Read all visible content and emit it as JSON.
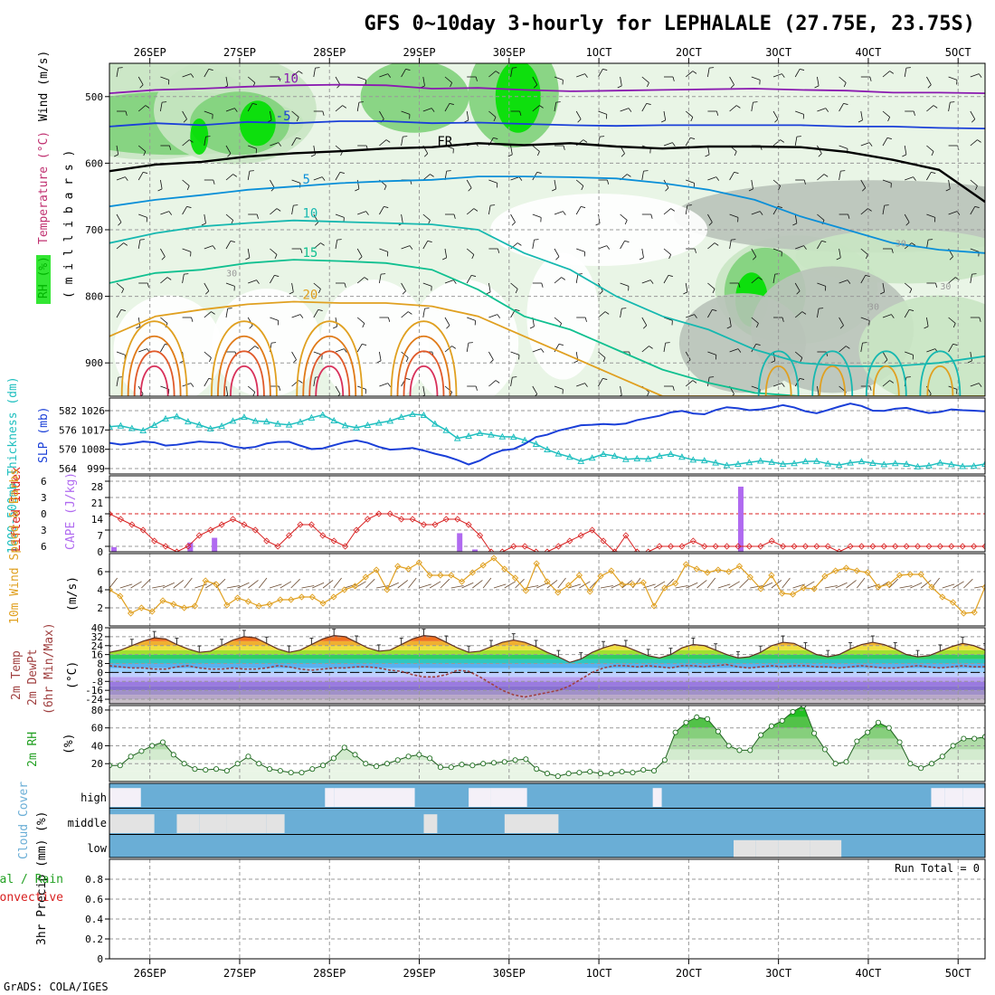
{
  "title": "GFS 0~10day 3-hourly for LEPHALALE (27.75E, 23.75S)",
  "credit": "GrADS: COLA/IGES",
  "colors": {
    "rh_green_1": "#e9f5e6",
    "rh_green_2": "#c9e6c3",
    "rh_green_3": "#7fd17a",
    "rh_green_4": "#00e000",
    "rh_grey": "#b9c3b9",
    "cloud_blue": "#6aaed6",
    "cloud_grey": "#e3e3e3",
    "thickness": "#1fbfbf",
    "slp": "#1a3fd8",
    "lifted": "#d82020",
    "cape": "#b06af0",
    "wind_speed": "#e0a020",
    "dewpoint": "#a04040",
    "rh2m": "#22a022"
  },
  "chart_data": {
    "type": "meteogram",
    "x": {
      "tick_labels": [
        "26SEP",
        "27SEP",
        "28SEP",
        "29SEP",
        "30SEP",
        "1OCT",
        "2OCT",
        "3OCT",
        "4OCT",
        "5OCT"
      ],
      "start_day": -0.45,
      "end_day": 9.3
    },
    "panels": [
      {
        "id": "upper_air",
        "ylabel_parts": [
          "RH (%)",
          "Temperature (°C)",
          "Wind (m/s)"
        ],
        "ylabel_mb": "( m i l l i b a r s )",
        "ylim": [
          950,
          450
        ],
        "yticks": [
          500,
          600,
          700,
          800,
          900
        ],
        "contours": [
          {
            "label": "-10",
            "level": -10,
            "color": "#8a1ab0",
            "values_mb": [
              495,
              490,
              488,
              485,
              483,
              482,
              483,
              488,
              487,
              490,
              492,
              491,
              490,
              489,
              488,
              490,
              491,
              494,
              494,
              495
            ]
          },
          {
            "label": "-5",
            "level": -5,
            "color": "#1a3fd8",
            "values_mb": [
              545,
              540,
              543,
              538,
              540,
              537,
              537,
              540,
              539,
              541,
              543,
              544,
              543,
              543,
              543,
              543,
              545,
              545,
              547,
              548
            ]
          },
          {
            "label": "FR",
            "level": 0,
            "color": "#000000",
            "values_mb": [
              612,
              602,
              598,
              590,
              585,
              582,
              578,
              576,
              570,
              573,
              570,
              575,
              578,
              575,
              575,
              576,
              583,
              595,
              610,
              658
            ]
          },
          {
            "label": "5",
            "level": 5,
            "color": "#0a8fd8",
            "values_mb": [
              665,
              655,
              648,
              640,
              635,
              630,
              627,
              625,
              620,
              620,
              621,
              623,
              630,
              640,
              655,
              680,
              700,
              720,
              730,
              735
            ]
          },
          {
            "label": "10",
            "level": 10,
            "color": "#16b8b0",
            "values_mb": [
              720,
              705,
              695,
              690,
              686,
              688,
              690,
              692,
              700,
              735,
              760,
              800,
              830,
              850,
              880,
              900,
              905,
              905,
              900,
              890
            ]
          },
          {
            "label": "15",
            "level": 15,
            "color": "#10c090",
            "values_mb": [
              780,
              765,
              760,
              750,
              745,
              747,
              750,
              760,
              790,
              830,
              850,
              880,
              910,
              930,
              945,
              950,
              950,
              950,
              950,
              950
            ]
          },
          {
            "label": "20",
            "level": 20,
            "color": "#e0a020",
            "values_mb": [
              860,
              830,
              820,
              812,
              808,
              810,
              810,
              815,
              830,
              860,
              890,
              920,
              950,
              950,
              950,
              950,
              950,
              950,
              950,
              950
            ]
          }
        ],
        "rh_labels": [
          "30",
          "30",
          "30",
          "30"
        ]
      },
      {
        "id": "thickness_slp",
        "ylabel": "1000-500mb Thickness (dm)",
        "ylabel2": "SLP (mb)",
        "left_ticks": [
          564,
          570,
          576,
          582
        ],
        "right_ticks": [
          999,
          1008,
          1017,
          1026
        ],
        "series": [
          {
            "name": "Thickness (dm)",
            "axis": "left",
            "values": [
              577.0,
              577.3,
              576.5,
              575.8,
              577.5,
              579.5,
              580.2,
              578.6,
              577.6,
              576.4,
              577.2,
              578.8,
              580.0,
              578.8,
              578.6,
              577.9,
              577.6,
              578.5,
              579.8,
              580.7,
              578.9,
              577.4,
              576.7,
              577.5,
              578.2,
              578.8,
              580.0,
              580.9,
              580.6,
              577.9,
              575.9,
              573.4,
              574.1,
              575.0,
              574.5,
              573.9,
              573.8,
              572.8,
              571.6,
              569.9,
              568.6,
              567.6,
              566.3,
              567.3,
              568.5,
              567.9,
              566.9,
              567.1,
              567.0,
              567.9,
              568.5,
              567.6,
              566.7,
              566.5,
              565.8,
              565.0,
              565.4,
              565.9,
              566.4,
              566.0,
              565.4,
              565.6,
              566.2,
              566.3,
              565.5,
              565.1,
              565.8,
              566.2,
              565.7,
              565.3,
              565.6,
              565.4,
              564.6,
              564.9,
              565.8,
              565.3,
              564.7,
              564.8,
              565.4
            ]
          },
          {
            "name": "SLP (mb)",
            "axis": "right",
            "values": [
              1011.0,
              1010.2,
              1010.8,
              1011.6,
              1011.2,
              1009.7,
              1010.1,
              1010.9,
              1011.6,
              1011.3,
              1011.0,
              1009.3,
              1008.5,
              1009.1,
              1010.7,
              1011.4,
              1011.5,
              1009.7,
              1008.1,
              1008.4,
              1009.9,
              1011.3,
              1012.1,
              1011.0,
              1009.1,
              1007.8,
              1008.1,
              1008.6,
              1007.4,
              1005.9,
              1004.7,
              1003.0,
              1000.9,
              1002.7,
              1005.6,
              1007.5,
              1008.1,
              1010.5,
              1013.7,
              1014.8,
              1016.7,
              1017.9,
              1019.2,
              1019.4,
              1019.8,
              1019.5,
              1020.0,
              1021.6,
              1022.6,
              1023.6,
              1025.2,
              1025.9,
              1024.7,
              1024.3,
              1026.3,
              1027.6,
              1027.1,
              1026.2,
              1026.6,
              1027.4,
              1028.6,
              1027.5,
              1025.7,
              1024.8,
              1026.3,
              1027.9,
              1029.3,
              1028.2,
              1026.0,
              1025.9,
              1026.9,
              1027.3,
              1026.0,
              1024.9,
              1025.4,
              1026.6,
              1026.2,
              1026.0,
              1025.7
            ]
          }
        ]
      },
      {
        "id": "lifted_cape",
        "ylabel": "Lifted Index",
        "ylabel2": "CAPE (J/kg)",
        "li_ticks": [
          -6,
          -3,
          0,
          3,
          6
        ],
        "cape_ticks": [
          0,
          7,
          14,
          21,
          28
        ],
        "reference_line_li": 0,
        "lifted_index": [
          0,
          1,
          2,
          3,
          5,
          6,
          7,
          6,
          4,
          3,
          2,
          1,
          2,
          3,
          5,
          6,
          4,
          2,
          2,
          4,
          5,
          6,
          3,
          1,
          0,
          0,
          1,
          1,
          2,
          2,
          1,
          1,
          2,
          4,
          7,
          7,
          6,
          6,
          7,
          7,
          6,
          5,
          4,
          3,
          5,
          7,
          4,
          7,
          7,
          6,
          6,
          6,
          5,
          6,
          6,
          6,
          6,
          6,
          6,
          5,
          6,
          6,
          6,
          6,
          6,
          7,
          6,
          6,
          6,
          6,
          6,
          6,
          6,
          6,
          6,
          6,
          6,
          6,
          6
        ],
        "cape_bars": [
          {
            "day": -0.4,
            "value": 2
          },
          {
            "day": 0.45,
            "value": 4
          },
          {
            "day": 0.72,
            "value": 6
          },
          {
            "day": 3.45,
            "value": 8
          },
          {
            "day": 3.62,
            "value": 1
          },
          {
            "day": 6.58,
            "value": 28
          }
        ]
      },
      {
        "id": "wind10m",
        "ylabel": "10m Wind Speed & Barbs",
        "ylabel_unit": "(m/s)",
        "ylim": [
          0,
          8
        ],
        "yticks": [
          2,
          4,
          6
        ],
        "values": [
          4.0,
          3.3,
          1.4,
          2.0,
          1.6,
          2.8,
          2.4,
          2.0,
          2.2,
          5.0,
          4.6,
          2.3,
          3.1,
          2.7,
          2.2,
          2.4,
          2.9,
          2.9,
          3.2,
          3.2,
          2.5,
          3.2,
          4.0,
          4.4,
          5.4,
          6.2,
          4.0,
          6.6,
          6.3,
          7.0,
          5.6,
          5.6,
          5.6,
          4.9,
          5.9,
          6.7,
          7.5,
          6.3,
          5.3,
          3.9,
          6.9,
          4.9,
          3.7,
          4.5,
          5.6,
          3.8,
          5.5,
          6.1,
          4.6,
          4.6,
          4.8,
          2.2,
          4.2,
          4.7,
          6.8,
          6.3,
          5.9,
          6.2,
          6.0,
          6.6,
          5.4,
          4.1,
          5.6,
          3.6,
          3.5,
          4.2,
          4.1,
          5.5,
          6.1,
          6.4,
          6.1,
          5.9,
          4.3,
          4.6,
          5.6,
          5.7,
          5.7,
          4.3,
          3.2,
          2.6,
          1.4,
          1.5,
          4.3
        ]
      },
      {
        "id": "temp2m",
        "ylabel": "2m Temp",
        "ylabel_b": "2m DewPt",
        "ylabel_c": "(6hr Min/Max)",
        "ylabel_unit": "(°C)",
        "yticks": [
          -24,
          -16,
          -8,
          0,
          8,
          16,
          24,
          32,
          40
        ],
        "ylim": [
          -28,
          40
        ],
        "temperature": [
          18,
          20,
          24,
          28,
          31,
          30,
          25,
          21,
          18,
          19,
          24,
          29,
          32,
          31,
          26,
          21,
          18,
          20,
          25,
          30,
          33,
          32,
          27,
          22,
          19,
          20,
          25,
          30,
          33,
          32,
          27,
          22,
          18,
          19,
          23,
          27,
          29,
          27,
          23,
          18,
          14,
          9,
          12,
          18,
          22,
          25,
          23,
          19,
          15,
          13,
          16,
          22,
          25,
          24,
          20,
          16,
          13,
          14,
          18,
          24,
          27,
          26,
          21,
          16,
          14,
          16,
          21,
          25,
          27,
          25,
          21,
          16,
          14,
          15,
          19,
          23,
          26,
          24,
          20
        ],
        "dewpoint": [
          6,
          5,
          4,
          4,
          3,
          3,
          5,
          6,
          4,
          3,
          3,
          4,
          3,
          3,
          4,
          6,
          5,
          3,
          2,
          3,
          4,
          4,
          5,
          5,
          4,
          2,
          1,
          -2,
          -4,
          -4,
          -2,
          2,
          1,
          -4,
          -10,
          -16,
          -20,
          -22,
          -20,
          -18,
          -16,
          -12,
          -6,
          0,
          4,
          6,
          6,
          5,
          6,
          5,
          4,
          6,
          6,
          5,
          6,
          7,
          5,
          4,
          5,
          6,
          5,
          6,
          6,
          5,
          5,
          4,
          5,
          6,
          5,
          4,
          4,
          5,
          6,
          5,
          4,
          5,
          6,
          5,
          5
        ]
      },
      {
        "id": "rh2m",
        "ylabel": "2m RH",
        "ylabel_unit": "(%)",
        "yticks": [
          20,
          40,
          60,
          80
        ],
        "ylim": [
          0,
          85
        ],
        "values": [
          18,
          18,
          28,
          34,
          40,
          44,
          30,
          20,
          14,
          13,
          14,
          12,
          20,
          28,
          20,
          14,
          12,
          10,
          10,
          14,
          18,
          26,
          38,
          30,
          20,
          17,
          20,
          24,
          28,
          30,
          26,
          16,
          16,
          19,
          18,
          20,
          21,
          22,
          24,
          25,
          14,
          9,
          6,
          9,
          10,
          11,
          9,
          9,
          11,
          10,
          13,
          12,
          24,
          55,
          66,
          72,
          70,
          56,
          40,
          35,
          35,
          52,
          62,
          68,
          78,
          85,
          54,
          36,
          20,
          22,
          45,
          55,
          66,
          60,
          44,
          20,
          15,
          20,
          28,
          40,
          48,
          48,
          50
        ]
      },
      {
        "id": "cloud",
        "ylabel": "Cloud Cover",
        "ylabel_unit": "(%)",
        "layers": [
          "high",
          "middle",
          "low"
        ],
        "grey_spans": [
          {
            "layer": "high",
            "day0": -0.45,
            "day1": -0.1
          },
          {
            "layer": "high",
            "day0": 1.95,
            "day1": 2.05
          },
          {
            "layer": "high",
            "day0": 2.05,
            "day1": 2.95
          },
          {
            "layer": "high",
            "day0": 3.55,
            "day1": 3.8
          },
          {
            "layer": "high",
            "day0": 3.8,
            "day1": 4.2
          },
          {
            "layer": "high",
            "day0": 5.6,
            "day1": 5.7
          },
          {
            "layer": "high",
            "day0": 8.7,
            "day1": 8.85
          },
          {
            "layer": "high",
            "day0": 8.85,
            "day1": 9.05
          },
          {
            "layer": "high",
            "day0": 9.05,
            "day1": 9.3
          },
          {
            "layer": "middle",
            "day0": -0.45,
            "day1": 0.05
          },
          {
            "layer": "middle",
            "day0": 0.3,
            "day1": 0.55
          },
          {
            "layer": "middle",
            "day0": 0.55,
            "day1": 0.85
          },
          {
            "layer": "middle",
            "day0": 0.85,
            "day1": 1.3
          },
          {
            "layer": "middle",
            "day0": 1.3,
            "day1": 1.5
          },
          {
            "layer": "middle",
            "day0": 3.05,
            "day1": 3.2
          },
          {
            "layer": "middle",
            "day0": 3.95,
            "day1": 4.55
          },
          {
            "layer": "low",
            "day0": 6.5,
            "day1": 6.75
          },
          {
            "layer": "low",
            "day0": 6.75,
            "day1": 7.0
          },
          {
            "layer": "low",
            "day0": 7.0,
            "day1": 7.35
          },
          {
            "layer": "low",
            "day0": 7.35,
            "day1": 7.7
          }
        ]
      },
      {
        "id": "precip",
        "ylabel": "3hr Precip (mm)",
        "ylabel_left_a": "Total / Rain",
        "ylabel_left_b": "Convective",
        "yticks": [
          "0",
          "0.2",
          "0.4",
          "0.6",
          "0.8"
        ],
        "ylim": [
          0,
          1
        ],
        "run_total_label": "Run Total = 0"
      }
    ]
  }
}
